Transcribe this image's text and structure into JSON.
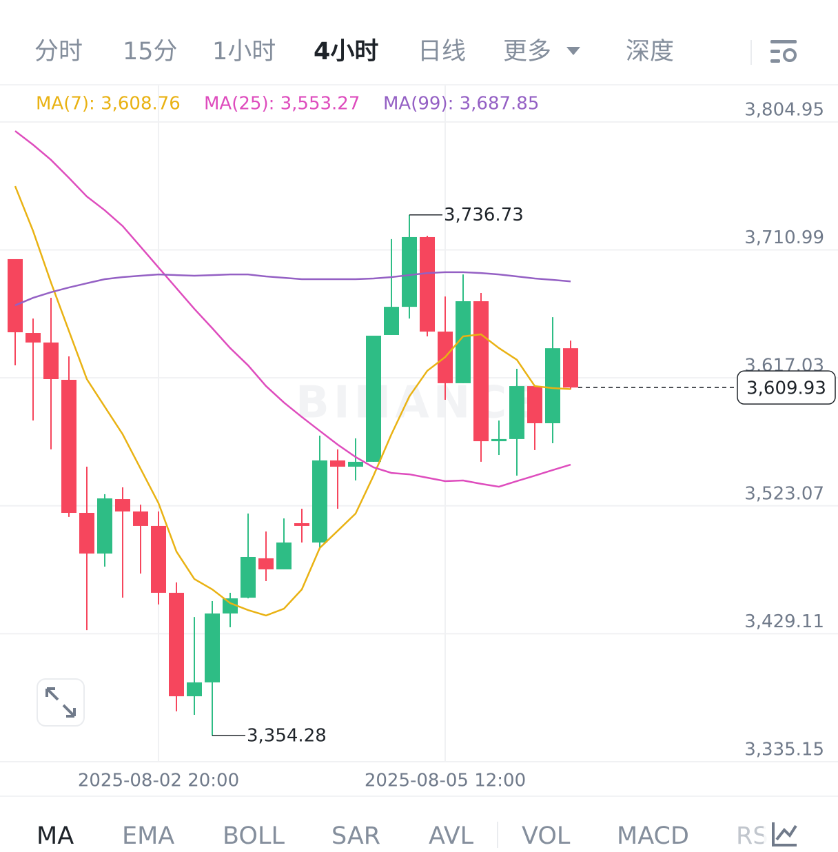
{
  "top_tabs": [
    "分时",
    "15分",
    "1小时",
    "4小时",
    "日线",
    "更多",
    "深度"
  ],
  "chart_data": {
    "type": "candlestick",
    "categories": [
      null,
      null,
      null,
      null,
      null,
      null,
      null,
      null,
      "2025-08-02 20:00",
      null,
      null,
      null,
      null,
      null,
      null,
      null,
      null,
      null,
      null,
      null,
      null,
      null,
      null,
      null,
      "2025-08-05 12:00",
      null,
      null,
      null,
      null,
      null,
      null,
      null
    ],
    "open": [
      3704.2,
      3650.0,
      3643.0,
      3615.6,
      3517.9,
      3488.0,
      3528.0,
      3518.9,
      3508.3,
      3459.2,
      3383.2,
      3393.4,
      3444.0,
      3455.6,
      3484.5,
      3476.4,
      3510.3,
      3496.1,
      3556.4,
      3551.8,
      3555.4,
      3648.5,
      3669.2,
      3720.4,
      3651.0,
      3613.1,
      3673.3,
      3570.5,
      3572.1,
      3611.0,
      3583.7,
      3638.8
    ],
    "high": [
      3704.2,
      3660.6,
      3675.8,
      3632.8,
      3551.8,
      3531.6,
      3536.6,
      3523.9,
      3518.9,
      3466.8,
      3441.4,
      3453.1,
      3459.2,
      3517.4,
      3504.2,
      3513.8,
      3520.9,
      3574.6,
      3564.5,
      3572.6,
      3648.0,
      3718.9,
      3736.73,
      3721.4,
      3676.8,
      3693.0,
      3679.4,
      3585.7,
      3623.7,
      3611.0,
      3661.6,
      3644.4
    ],
    "low": [
      3626.2,
      3585.7,
      3564.5,
      3514.9,
      3431.8,
      3478.4,
      3455.6,
      3473.3,
      3450.6,
      3372.1,
      3369.6,
      3354.28,
      3433.9,
      3455.1,
      3467.8,
      3476.4,
      3496.1,
      3491.1,
      3520.9,
      3541.7,
      3555.4,
      3648.5,
      3660.6,
      3647.5,
      3600.9,
      3613.1,
      3555.4,
      3560.4,
      3545.2,
      3564.0,
      3569.0,
      3608.5
    ],
    "close": [
      3650.5,
      3643.0,
      3616.1,
      3517.9,
      3488.0,
      3528.5,
      3518.9,
      3508.3,
      3459.2,
      3383.2,
      3393.4,
      3444.0,
      3455.1,
      3485.5,
      3476.4,
      3496.1,
      3508.3,
      3556.4,
      3551.8,
      3555.4,
      3648.0,
      3669.2,
      3720.4,
      3651.0,
      3613.1,
      3673.3,
      3570.5,
      3572.1,
      3611.0,
      3583.7,
      3638.8,
      3609.93
    ],
    "up_color": "#2ebd85",
    "down_color": "#f6465d",
    "overlays": [
      {
        "name": "MA(7): 3,608.76",
        "color": "#e9b213",
        "values": [
          3757.8,
          3724.9,
          3687.0,
          3651.5,
          3616.1,
          3595.8,
          3575.6,
          3550.3,
          3525.0,
          3489.5,
          3469.3,
          3461.7,
          3451.6,
          3446.5,
          3442.5,
          3447.5,
          3461.7,
          3492.1,
          3504.7,
          3517.4,
          3545.2,
          3575.6,
          3603.4,
          3622.2,
          3632.3,
          3647.5,
          3649.0,
          3638.9,
          3630.3,
          3611.0,
          3609.5,
          3608.76
        ]
      },
      {
        "name": "MA(25): 3,553.27",
        "color": "#de4cbd",
        "values": [
          3798.3,
          3788.2,
          3777.1,
          3763.9,
          3750.2,
          3740.1,
          3728.5,
          3713.3,
          3698.1,
          3682.9,
          3667.7,
          3653.5,
          3638.9,
          3626.2,
          3611.0,
          3598.9,
          3588.3,
          3578.1,
          3568.0,
          3558.9,
          3551.3,
          3547.2,
          3546.2,
          3543.7,
          3541.2,
          3541.7,
          3539.2,
          3537.1,
          3541.2,
          3545.2,
          3549.3,
          3553.27
        ]
      },
      {
        "name": "MA(99): 3,687.85",
        "color": "#9460c4",
        "values": [
          3670.3,
          3675.8,
          3679.9,
          3683.4,
          3686.5,
          3689.5,
          3691.0,
          3692.0,
          3693.0,
          3692.5,
          3692.0,
          3692.5,
          3693.0,
          3693.0,
          3691.5,
          3690.5,
          3689.5,
          3689.5,
          3689.5,
          3689.5,
          3690.0,
          3691.0,
          3692.5,
          3694.0,
          3694.6,
          3694.6,
          3694.0,
          3693.0,
          3691.5,
          3690.0,
          3689.0,
          3687.85
        ]
      }
    ],
    "ylim": [
      3335.15,
      3832.25
    ],
    "yticks": [
      {
        "value": 3335.15,
        "label": "3,335.15"
      },
      {
        "value": 3429.11,
        "label": "3,429.11"
      },
      {
        "value": 3523.07,
        "label": "3,523.07"
      },
      {
        "value": 3617.03,
        "label": "3,617.03"
      },
      {
        "value": 3710.99,
        "label": "3,710.99"
      },
      {
        "value": 3804.95,
        "label": "3,804.95"
      }
    ],
    "grid": true,
    "annotations": [
      {
        "value": 3736.73,
        "label": "3,736.73"
      },
      {
        "value": 3354.28,
        "label": "3,354.28"
      }
    ],
    "last_price": {
      "value": 3609.93,
      "label": "3,609.93"
    },
    "watermark": "BINANCE"
  },
  "indicator_tabs": [
    "MA",
    "EMA",
    "BOLL",
    "SAR",
    "AVL",
    "VOL",
    "MACD",
    "RS"
  ]
}
